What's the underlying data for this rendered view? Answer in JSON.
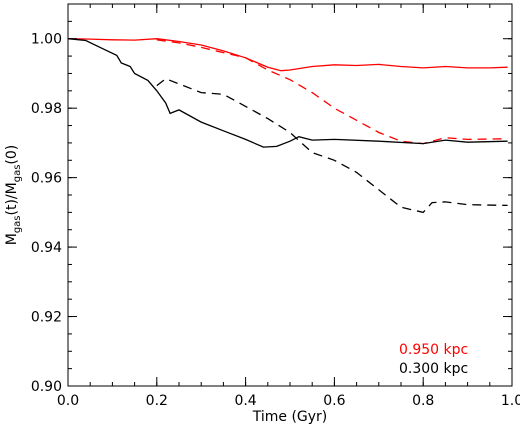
{
  "chart_data": {
    "type": "line",
    "title": "",
    "xlabel": "Time (Gyr)",
    "ylabel": {
      "base1": "M",
      "sub1": "gas",
      "mid": "(t)/M",
      "sub2": "gas",
      "tail": "(0)"
    },
    "xlim": [
      0.0,
      1.0
    ],
    "ylim": [
      0.9,
      1.01
    ],
    "xticks": [
      0.0,
      0.2,
      0.4,
      0.6,
      0.8,
      1.0
    ],
    "xtick_labels": [
      "0.0",
      "0.2",
      "0.4",
      "0.6",
      "0.8",
      "1.0"
    ],
    "yticks": [
      0.9,
      0.92,
      0.94,
      0.96,
      0.98,
      1.0
    ],
    "ytick_labels": [
      "0.90",
      "0.92",
      "0.94",
      "0.96",
      "0.98",
      "1.00"
    ],
    "grid": false,
    "legend_position": "bottom-right",
    "legend": [
      {
        "label": "0.950 kpc",
        "color": "#ff0000"
      },
      {
        "label": "0.300 kpc",
        "color": "#000000"
      }
    ],
    "series": [
      {
        "color": "#ff0000",
        "style": "solid",
        "points": [
          [
            0.0,
            1.0
          ],
          [
            0.05,
            0.9999
          ],
          [
            0.1,
            0.9997
          ],
          [
            0.15,
            0.9996
          ],
          [
            0.2,
            1.0
          ],
          [
            0.25,
            0.9992
          ],
          [
            0.3,
            0.9982
          ],
          [
            0.35,
            0.9965
          ],
          [
            0.4,
            0.9945
          ],
          [
            0.45,
            0.9918
          ],
          [
            0.48,
            0.9908
          ],
          [
            0.5,
            0.991
          ],
          [
            0.55,
            0.992
          ],
          [
            0.6,
            0.9925
          ],
          [
            0.65,
            0.9923
          ],
          [
            0.7,
            0.9926
          ],
          [
            0.75,
            0.992
          ],
          [
            0.8,
            0.9916
          ],
          [
            0.85,
            0.992
          ],
          [
            0.9,
            0.9916
          ],
          [
            0.95,
            0.9916
          ],
          [
            0.99,
            0.9918
          ]
        ]
      },
      {
        "color": "#ff0000",
        "style": "dashed",
        "points": [
          [
            0.2,
            0.9997
          ],
          [
            0.25,
            0.9988
          ],
          [
            0.3,
            0.9975
          ],
          [
            0.35,
            0.996
          ],
          [
            0.4,
            0.9945
          ],
          [
            0.45,
            0.991
          ],
          [
            0.5,
            0.9882
          ],
          [
            0.55,
            0.9845
          ],
          [
            0.6,
            0.98
          ],
          [
            0.65,
            0.9765
          ],
          [
            0.7,
            0.973
          ],
          [
            0.75,
            0.9705
          ],
          [
            0.8,
            0.9698
          ],
          [
            0.85,
            0.9715
          ],
          [
            0.9,
            0.971
          ],
          [
            0.99,
            0.9712
          ]
        ]
      },
      {
        "color": "#000000",
        "style": "solid",
        "points": [
          [
            0.0,
            1.0
          ],
          [
            0.04,
            0.9995
          ],
          [
            0.08,
            0.997
          ],
          [
            0.11,
            0.9952
          ],
          [
            0.12,
            0.993
          ],
          [
            0.14,
            0.992
          ],
          [
            0.15,
            0.99
          ],
          [
            0.18,
            0.988
          ],
          [
            0.2,
            0.985
          ],
          [
            0.22,
            0.9815
          ],
          [
            0.23,
            0.9785
          ],
          [
            0.25,
            0.9795
          ],
          [
            0.3,
            0.976
          ],
          [
            0.35,
            0.9735
          ],
          [
            0.4,
            0.971
          ],
          [
            0.44,
            0.9688
          ],
          [
            0.47,
            0.969
          ],
          [
            0.5,
            0.9705
          ],
          [
            0.52,
            0.9718
          ],
          [
            0.55,
            0.9708
          ],
          [
            0.6,
            0.971
          ],
          [
            0.7,
            0.9705
          ],
          [
            0.8,
            0.9698
          ],
          [
            0.85,
            0.9708
          ],
          [
            0.9,
            0.9702
          ],
          [
            0.99,
            0.9705
          ]
        ]
      },
      {
        "color": "#000000",
        "style": "dashed",
        "points": [
          [
            0.2,
            0.9865
          ],
          [
            0.22,
            0.9885
          ],
          [
            0.25,
            0.987
          ],
          [
            0.3,
            0.9845
          ],
          [
            0.35,
            0.984
          ],
          [
            0.4,
            0.9805
          ],
          [
            0.45,
            0.977
          ],
          [
            0.5,
            0.973
          ],
          [
            0.55,
            0.9672
          ],
          [
            0.6,
            0.965
          ],
          [
            0.65,
            0.9615
          ],
          [
            0.7,
            0.9565
          ],
          [
            0.75,
            0.9515
          ],
          [
            0.8,
            0.95
          ],
          [
            0.82,
            0.9528
          ],
          [
            0.85,
            0.953
          ],
          [
            0.9,
            0.9522
          ],
          [
            0.99,
            0.952
          ]
        ]
      }
    ]
  }
}
